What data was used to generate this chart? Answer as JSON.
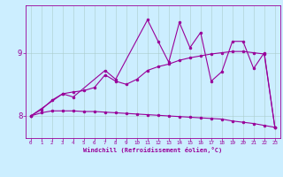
{
  "x_all": [
    0,
    1,
    2,
    3,
    4,
    5,
    6,
    7,
    8,
    9,
    10,
    11,
    12,
    13,
    14,
    15,
    16,
    17,
    18,
    19,
    20,
    21,
    22,
    23
  ],
  "line_bottom": [
    8.0,
    8.05,
    8.08,
    8.08,
    8.08,
    8.07,
    8.07,
    8.06,
    8.05,
    8.04,
    8.03,
    8.02,
    8.01,
    8.0,
    7.99,
    7.98,
    7.97,
    7.96,
    7.95,
    7.92,
    7.9,
    7.88,
    7.85,
    7.82
  ],
  "line_mid_x": [
    0,
    1,
    2,
    3,
    4,
    5,
    6,
    7,
    8,
    9,
    10,
    11,
    12,
    13,
    14,
    15,
    16,
    17,
    18,
    19,
    20,
    21,
    22,
    23
  ],
  "line_mid_y": [
    8.0,
    8.1,
    8.25,
    8.35,
    8.38,
    8.4,
    8.45,
    8.65,
    8.55,
    8.5,
    8.58,
    8.72,
    8.78,
    8.82,
    8.88,
    8.92,
    8.95,
    8.98,
    9.0,
    9.02,
    9.02,
    9.0,
    8.98,
    7.82
  ],
  "line_top_x": [
    0,
    3,
    4,
    7,
    8,
    11,
    12,
    13,
    14,
    15,
    16,
    17,
    18,
    19,
    20,
    21,
    22,
    23
  ],
  "line_top_y": [
    8.0,
    8.35,
    8.3,
    8.72,
    8.58,
    9.52,
    9.18,
    8.85,
    9.48,
    9.08,
    9.32,
    8.55,
    8.7,
    9.18,
    9.18,
    8.75,
    9.0,
    7.82
  ],
  "bg_color": "#cceeff",
  "line_color": "#990099",
  "xlabel": "Windchill (Refroidissement éolien,°C)",
  "ylim_min": 7.65,
  "ylim_max": 9.75,
  "xlim_min": -0.5,
  "xlim_max": 23.5,
  "ytick_vals": [
    8,
    9
  ],
  "ytick_labels": [
    "8",
    "9"
  ],
  "xtick_vals": [
    0,
    1,
    2,
    3,
    4,
    5,
    6,
    7,
    8,
    9,
    10,
    11,
    12,
    13,
    14,
    15,
    16,
    17,
    18,
    19,
    20,
    21,
    22,
    23
  ],
  "grid_color": "#aacccc",
  "marker_size": 2.0,
  "line_width": 0.8
}
